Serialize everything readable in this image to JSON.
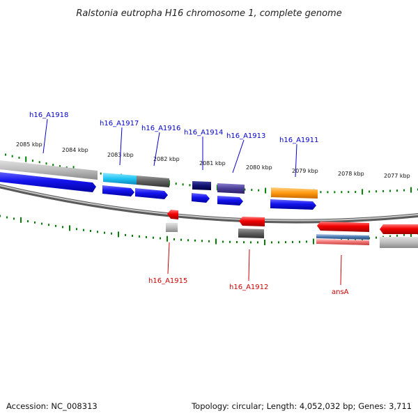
{
  "title": "Ralstonia eutropha H16 chromosome 1, complete genome",
  "footer": {
    "accession": "Accession: NC_008313",
    "topology": "Topology: circular; Length: 4,052,032 bp; Genes: 3,711"
  },
  "colors": {
    "forward_label": "#0000cc",
    "reverse_label": "#cc0000",
    "tick": "#008000",
    "backbone": "#888888"
  },
  "ticks": [
    "2085 kbp",
    "2084 kbp",
    "2083 kbp",
    "2082 kbp",
    "2081 kbp",
    "2080 kbp",
    "2079 kbp",
    "2078 kbp",
    "2077 kbp"
  ],
  "forward_labels": [
    "h16_A1918",
    "h16_A1917",
    "h16_A1916",
    "h16_A1914",
    "h16_A1913",
    "h16_A1911"
  ],
  "reverse_labels": [
    "h16_A1915",
    "h16_A1912",
    "ansA"
  ]
}
